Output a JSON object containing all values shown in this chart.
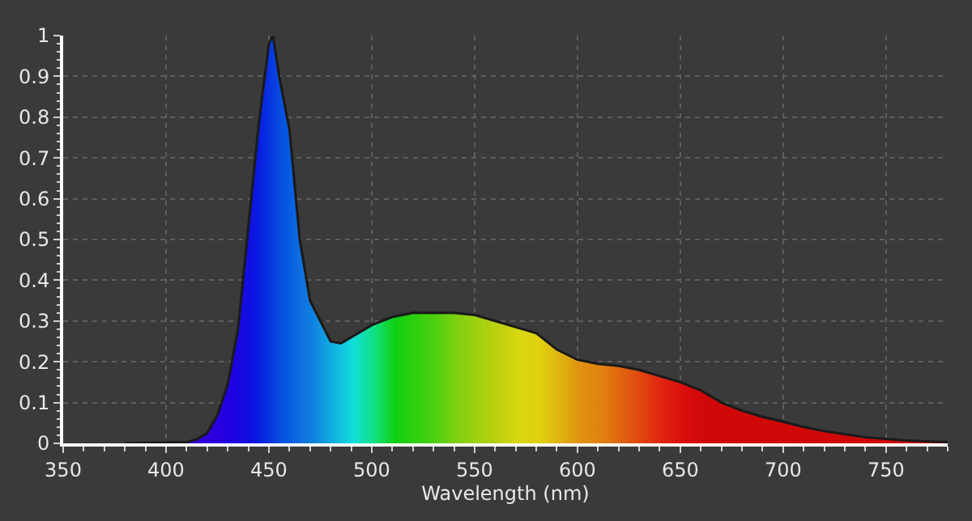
{
  "chart_data": {
    "type": "area",
    "xlabel": "Wavelength (nm)",
    "x": [
      380,
      400,
      410,
      415,
      420,
      425,
      430,
      435,
      440,
      445,
      450,
      452,
      455,
      460,
      465,
      470,
      475,
      480,
      485,
      490,
      500,
      510,
      520,
      530,
      540,
      550,
      560,
      570,
      580,
      590,
      600,
      610,
      620,
      630,
      640,
      650,
      660,
      670,
      680,
      690,
      700,
      710,
      720,
      740,
      760,
      780
    ],
    "series": [
      {
        "color": "#1a1a1a",
        "values": [
          0,
          0.002,
          0.003,
          0.01,
          0.025,
          0.07,
          0.145,
          0.28,
          0.53,
          0.78,
          0.98,
          1,
          0.9,
          0.77,
          0.5,
          0.35,
          0.3,
          0.25,
          0.245,
          0.26,
          0.29,
          0.31,
          0.32,
          0.32,
          0.32,
          0.315,
          0.3,
          0.285,
          0.27,
          0.23,
          0.205,
          0.195,
          0.19,
          0.18,
          0.165,
          0.15,
          0.13,
          0.1,
          0.08,
          0.065,
          0.053,
          0.04,
          0.03,
          0.015,
          0.007,
          0.003
        ],
        "colors": [
          "#1a0080",
          "#2a00a0",
          "#3000c0",
          "#3000d0",
          "#3000e0",
          "#2800e0",
          "#2000e0",
          "#1808e0",
          "#1010e0",
          "#0820e0",
          "#0838e0",
          "#0840e0",
          "#0850e0",
          "#0860e0",
          "#1070e0",
          "#1080e0",
          "#1098e0",
          "#10b0e0",
          "#10c8e0",
          "#10e0d8",
          "#10e080",
          "#10d010",
          "#30d010",
          "#50d010",
          "#80d010",
          "#a0d010",
          "#c0d010",
          "#d8d810",
          "#e0d010",
          "#e0b010",
          "#e09010",
          "#e08010",
          "#e06010",
          "#e04010",
          "#e02010",
          "#d80c0c",
          "#d00808",
          "#d00808",
          "#d00808",
          "#d00808",
          "#d00808",
          "#d00808",
          "#d00808",
          "#d00808",
          "#d00808",
          "#d00808"
        ]
      }
    ],
    "xlim": [
      350,
      780
    ],
    "xticks": [
      350,
      400,
      450,
      500,
      550,
      600,
      650,
      700,
      750
    ],
    "ylim": [
      0,
      1
    ],
    "yticks": [
      0,
      0.1,
      0.2,
      0.3,
      0.4,
      0.5,
      0.6,
      0.7,
      0.8,
      0.9,
      1
    ],
    "grid": true
  }
}
